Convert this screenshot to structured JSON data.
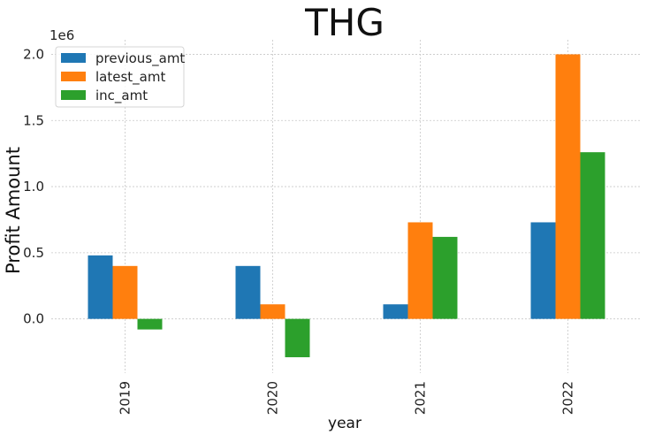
{
  "chart_data": {
    "type": "bar",
    "title": "THG",
    "xlabel": "year",
    "ylabel": "Profit Amount",
    "y_offset_label": "1e6",
    "categories": [
      "2019",
      "2020",
      "2021",
      "2022"
    ],
    "series": [
      {
        "name": "previous_amt",
        "color": "#1f77b4",
        "values": [
          480000,
          400000,
          110000,
          730000
        ]
      },
      {
        "name": "latest_amt",
        "color": "#ff7f0e",
        "values": [
          400000,
          110000,
          730000,
          2000000
        ]
      },
      {
        "name": "inc_amt",
        "color": "#2ca02c",
        "values": [
          -80000,
          -290000,
          620000,
          1260000
        ]
      }
    ],
    "yticks": [
      0,
      500000,
      1000000,
      1500000,
      2000000
    ],
    "ytick_labels": [
      "0.0",
      "0.5",
      "1.0",
      "1.5",
      "2.0"
    ],
    "ylim": [
      -410000,
      2110000
    ],
    "grid": true,
    "legend_position": "top-left"
  }
}
